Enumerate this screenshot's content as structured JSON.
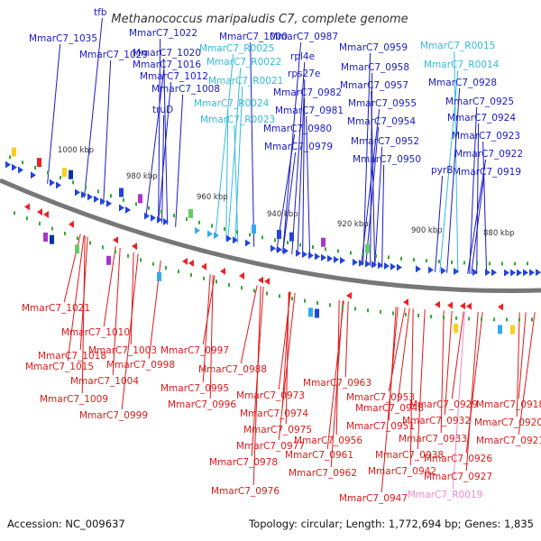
{
  "title": "Methanococcus maripaludis C7, complete genome",
  "footer": {
    "accession": "Accession: NC_009637",
    "summary": "Topology: circular; Length: 1,772,694 bp; Genes: 1,835"
  },
  "colors": {
    "forward_label": "#1a1ac8",
    "rna_label": "#33bbdd",
    "reverse_label": "#dd1a1a",
    "pink_label": "#ee88cc",
    "backbone": "#777777",
    "tick": "#33aa33"
  },
  "kbp_ticks": [
    "1000 kbp",
    "980 kbp",
    "960 kbp",
    "940 kbp",
    "920 kbp",
    "900 kbp",
    "880 kbp"
  ],
  "top_labels": [
    {
      "text": "tfb",
      "color": "forward"
    },
    {
      "text": "MmarC7_1035",
      "color": "forward"
    },
    {
      "text": "MmarC7_1029",
      "color": "forward"
    },
    {
      "text": "MmarC7_1022",
      "color": "forward"
    },
    {
      "text": "MmarC7_1020",
      "color": "forward"
    },
    {
      "text": "MmarC7_1016",
      "color": "forward"
    },
    {
      "text": "MmarC7_1012",
      "color": "forward"
    },
    {
      "text": "MmarC7_1008",
      "color": "forward"
    },
    {
      "text": "truD",
      "color": "forward"
    },
    {
      "text": "MmarC7_1000",
      "color": "forward"
    },
    {
      "text": "MmarC7_R0025",
      "color": "rna"
    },
    {
      "text": "MmarC7_R0022",
      "color": "rna"
    },
    {
      "text": "MmarC7_R0021",
      "color": "rna"
    },
    {
      "text": "MmarC7_R0024",
      "color": "rna"
    },
    {
      "text": "MmarC7_R0023",
      "color": "rna"
    },
    {
      "text": "MmarC7_0987",
      "color": "forward"
    },
    {
      "text": "rpl4e",
      "color": "forward"
    },
    {
      "text": "rps27e",
      "color": "forward"
    },
    {
      "text": "MmarC7_0982",
      "color": "forward"
    },
    {
      "text": "MmarC7_0981",
      "color": "forward"
    },
    {
      "text": "MmarC7_0980",
      "color": "forward"
    },
    {
      "text": "MmarC7_0979",
      "color": "forward"
    },
    {
      "text": "MmarC7_0959",
      "color": "forward"
    },
    {
      "text": "MmarC7_0958",
      "color": "forward"
    },
    {
      "text": "MmarC7_0957",
      "color": "forward"
    },
    {
      "text": "MmarC7_0955",
      "color": "forward"
    },
    {
      "text": "MmarC7_0954",
      "color": "forward"
    },
    {
      "text": "MmarC7_0952",
      "color": "forward"
    },
    {
      "text": "MmarC7_0950",
      "color": "forward"
    },
    {
      "text": "MmarC7_R0015",
      "color": "rna"
    },
    {
      "text": "MmarC7_R0014",
      "color": "rna"
    },
    {
      "text": "MmarC7_0928",
      "color": "forward"
    },
    {
      "text": "MmarC7_0925",
      "color": "forward"
    },
    {
      "text": "MmarC7_0924",
      "color": "forward"
    },
    {
      "text": "MmarC7_0923",
      "color": "forward"
    },
    {
      "text": "MmarC7_0922",
      "color": "forward"
    },
    {
      "text": "MmarC7_0919",
      "color": "forward"
    },
    {
      "text": "pyrB",
      "color": "forward"
    }
  ],
  "bottom_labels": [
    {
      "text": "MmarC7_1021",
      "color": "reverse"
    },
    {
      "text": "MmarC7_1010",
      "color": "reverse"
    },
    {
      "text": "MmarC7_1018",
      "color": "reverse"
    },
    {
      "text": "MmarC7_1003",
      "color": "reverse"
    },
    {
      "text": "MmarC7_1015",
      "color": "reverse"
    },
    {
      "text": "MmarC7_0998",
      "color": "reverse"
    },
    {
      "text": "MmarC7_1004",
      "color": "reverse"
    },
    {
      "text": "MmarC7_1009",
      "color": "reverse"
    },
    {
      "text": "MmarC7_0999",
      "color": "reverse"
    },
    {
      "text": "MmarC7_0997",
      "color": "reverse"
    },
    {
      "text": "MmarC7_0995",
      "color": "reverse"
    },
    {
      "text": "MmarC7_0996",
      "color": "reverse"
    },
    {
      "text": "MmarC7_0988",
      "color": "reverse"
    },
    {
      "text": "MmarC7_0973",
      "color": "reverse"
    },
    {
      "text": "MmarC7_0974",
      "color": "reverse"
    },
    {
      "text": "MmarC7_0975",
      "color": "reverse"
    },
    {
      "text": "MmarC7_0977",
      "color": "reverse"
    },
    {
      "text": "MmarC7_0978",
      "color": "reverse"
    },
    {
      "text": "MmarC7_0976",
      "color": "reverse"
    },
    {
      "text": "MmarC7_0963",
      "color": "reverse"
    },
    {
      "text": "MmarC7_0953",
      "color": "reverse"
    },
    {
      "text": "MmarC7_0948",
      "color": "reverse"
    },
    {
      "text": "MmarC7_0951",
      "color": "reverse"
    },
    {
      "text": "MmarC7_0956",
      "color": "reverse"
    },
    {
      "text": "MmarC7_0961",
      "color": "reverse"
    },
    {
      "text": "MmarC7_0962",
      "color": "reverse"
    },
    {
      "text": "MmarC7_0938",
      "color": "reverse"
    },
    {
      "text": "MmarC7_0942",
      "color": "reverse"
    },
    {
      "text": "MmarC7_0947",
      "color": "reverse"
    },
    {
      "text": "MmarC7_0929",
      "color": "reverse"
    },
    {
      "text": "MmarC7_0932",
      "color": "reverse"
    },
    {
      "text": "MmarC7_0933",
      "color": "reverse"
    },
    {
      "text": "MmarC7_0926",
      "color": "reverse"
    },
    {
      "text": "MmarC7_0927",
      "color": "reverse"
    },
    {
      "text": "MmarC7_0918",
      "color": "reverse"
    },
    {
      "text": "MmarC7_0920",
      "color": "reverse"
    },
    {
      "text": "MmarC7_0921",
      "color": "reverse"
    },
    {
      "text": "MmarC7_R0019",
      "color": "pink"
    }
  ]
}
